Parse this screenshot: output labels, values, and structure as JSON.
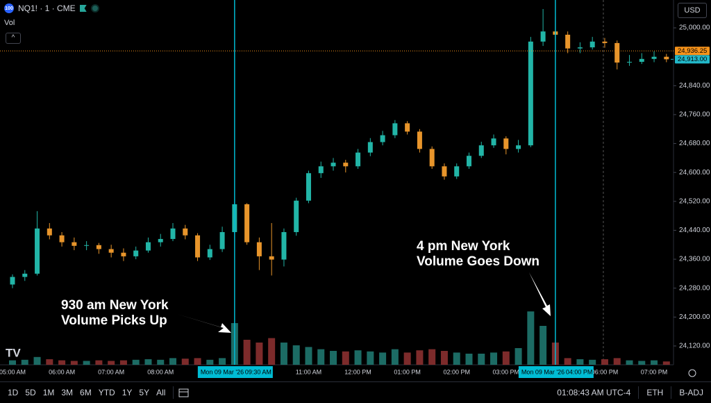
{
  "header": {
    "logo": "100",
    "symbol": "NQ1! · 1 · CME",
    "indicator": "Vol",
    "currency": "USD"
  },
  "chart_data": {
    "type": "candlestick",
    "ylim": [
      24068,
      25077
    ],
    "yticks": [
      {
        "value": 24120,
        "label": "24,120.00"
      },
      {
        "value": 24200,
        "label": "24,200.00"
      },
      {
        "value": 24280,
        "label": "24,280.00"
      },
      {
        "value": 24360,
        "label": "24,360.00"
      },
      {
        "value": 24440,
        "label": "24,440.00"
      },
      {
        "value": 24520,
        "label": "24,520.00"
      },
      {
        "value": 24600,
        "label": "24,600.00"
      },
      {
        "value": 24680,
        "label": "24,680.00"
      },
      {
        "value": 24760,
        "label": "24,760.00"
      },
      {
        "value": 24840,
        "label": "24,840.00"
      },
      {
        "value": 25000,
        "label": "25,000.00"
      }
    ],
    "categories": [
      "05:00 AM",
      null,
      null,
      null,
      "06:00 AM",
      null,
      null,
      null,
      "07:00 AM",
      null,
      null,
      null,
      "08:00 AM",
      null,
      null,
      null,
      null,
      null,
      null,
      null,
      null,
      null,
      null,
      null,
      "11:00 AM",
      null,
      null,
      null,
      "12:00 PM",
      null,
      null,
      null,
      "01:00 PM",
      null,
      null,
      null,
      "02:00 PM",
      null,
      null,
      null,
      "03:00 PM",
      null,
      null,
      null,
      null,
      null,
      null,
      null,
      "06:00 PM",
      null,
      null,
      null,
      "07:00 PM",
      null
    ],
    "open": [
      24290,
      24311,
      24320,
      24445,
      24426,
      24407,
      24397,
      24399,
      24388,
      24378,
      24368,
      24384,
      24407,
      24416,
      24445,
      24426,
      24365,
      24388,
      24435,
      24512,
      24407,
      24368,
      24359,
      24435,
      24522,
      24598,
      24617,
      24627,
      24617,
      24655,
      24684,
      24703,
      24736,
      24713,
      24665,
      24617,
      24589,
      24617,
      24646,
      24675,
      24694,
      24665,
      24675,
      24962,
      24990,
      24981,
      24943,
      24946,
      24962,
      24958,
      24904,
      24906,
      24914,
      24920
    ],
    "high": [
      24318,
      24330,
      24493,
      24460,
      24435,
      24420,
      24410,
      24405,
      24400,
      24390,
      24395,
      24420,
      24430,
      24460,
      24455,
      24432,
      24400,
      24450,
      24525,
      24515,
      24420,
      24460,
      24445,
      24530,
      24605,
      24630,
      24640,
      24635,
      24665,
      24695,
      24715,
      24745,
      24742,
      24720,
      24672,
      24625,
      24625,
      24655,
      24685,
      24705,
      24700,
      24690,
      24975,
      25052,
      25030,
      24990,
      24960,
      24975,
      24972,
      24965,
      24925,
      24930,
      24935,
      24928
    ],
    "low": [
      24280,
      24300,
      24315,
      24415,
      24395,
      24385,
      24385,
      24375,
      24365,
      24355,
      24360,
      24378,
      24395,
      24410,
      24415,
      24355,
      24358,
      24380,
      24430,
      24400,
      24330,
      24315,
      24340,
      24425,
      24515,
      24585,
      24605,
      24600,
      24610,
      24645,
      24675,
      24695,
      24705,
      24655,
      24610,
      24580,
      24582,
      24610,
      24640,
      24668,
      24650,
      24655,
      24670,
      24950,
      24965,
      24930,
      24930,
      24940,
      24945,
      24885,
      24895,
      24900,
      24905,
      24905
    ],
    "close": [
      24311,
      24320,
      24445,
      24426,
      24407,
      24397,
      24399,
      24388,
      24378,
      24368,
      24384,
      24407,
      24416,
      24445,
      24426,
      24365,
      24388,
      24435,
      24512,
      24407,
      24368,
      24359,
      24435,
      24522,
      24598,
      24617,
      24627,
      24617,
      24655,
      24684,
      24703,
      24736,
      24713,
      24665,
      24617,
      24589,
      24617,
      24646,
      24675,
      24694,
      24665,
      24675,
      24962,
      24990,
      24981,
      24943,
      24946,
      24962,
      24958,
      24904,
      24906,
      24914,
      24920,
      24913
    ],
    "up_color": "#22b5a7",
    "down_color": "#e8952b",
    "volume": {
      "values": [
        8,
        9,
        14,
        10,
        8,
        7,
        7,
        8,
        7,
        8,
        9,
        10,
        9,
        12,
        11,
        12,
        9,
        12,
        75,
        45,
        40,
        48,
        40,
        35,
        32,
        28,
        25,
        24,
        26,
        24,
        22,
        28,
        22,
        26,
        28,
        25,
        22,
        20,
        20,
        22,
        24,
        30,
        96,
        70,
        40,
        12,
        10,
        9,
        10,
        12,
        8,
        7,
        8,
        6
      ],
      "axis": "y2",
      "up_color": "#1c6b64",
      "down_color": "#7d2b2b"
    },
    "y2lim": [
      0,
      100
    ],
    "price_lines": [
      {
        "value": 24936.25,
        "label": "24,936.25",
        "color": "#f7931a"
      },
      {
        "value": 24913,
        "label": "24,913.00",
        "color": "#22b8c9"
      }
    ],
    "crosshairs": [
      {
        "date": "Mon 09 Mar '26",
        "time": "09:30 AM"
      },
      {
        "date": "Mon 09 Mar '26",
        "time": "04:00 PM"
      }
    ],
    "crosshair_color": "#00bcd4",
    "annotations": [
      {
        "lines": [
          "930 am New York",
          "Volume Picks Up"
        ]
      },
      {
        "lines": [
          "4 pm New York",
          "Volume Goes Down"
        ]
      }
    ]
  },
  "toolbar": {
    "ranges": [
      "1D",
      "5D",
      "1M",
      "3M",
      "6M",
      "YTD",
      "1Y",
      "5Y",
      "All"
    ],
    "clock": "01:08:43 AM UTC-4",
    "session": "ETH",
    "adjust": "B-ADJ"
  }
}
